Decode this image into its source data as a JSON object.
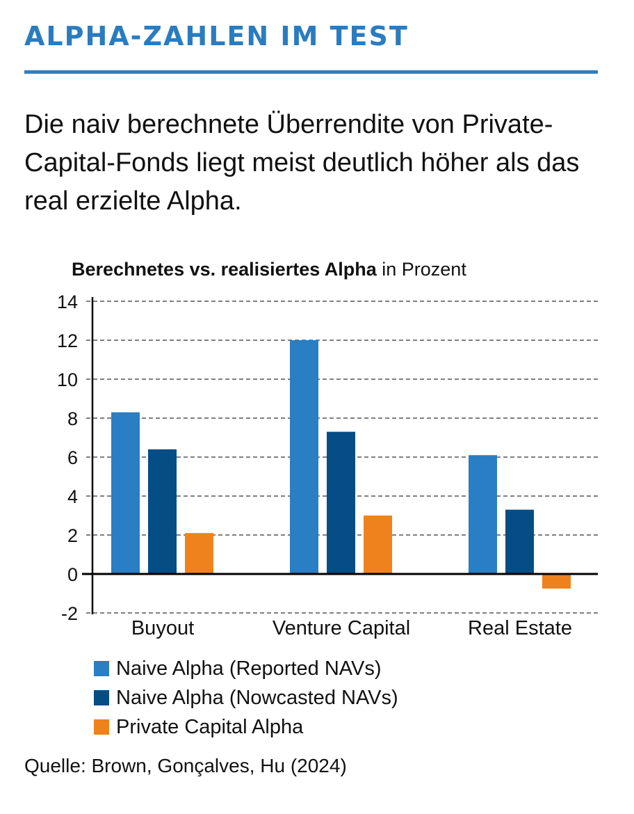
{
  "header": {
    "title": "ALPHA-ZAHLEN IM TEST",
    "subtitle": "Die naiv berechnete Überrendite von Private-Capital-Fonds liegt meist deutlich höher als das real erzielte Alpha."
  },
  "colors": {
    "accent": "#2a7cc0",
    "naive_reported": "#2a7ec3",
    "naive_nowcasted": "#054d85",
    "private_capital": "#ef821c"
  },
  "chart_data": {
    "type": "bar",
    "title_bold": "Berechnetes vs. realisiertes Alpha",
    "title_regular": "in Prozent",
    "xlabel": "",
    "ylabel": "",
    "categories": [
      "Buyout",
      "Venture Capital",
      "Real Estate"
    ],
    "series": [
      {
        "name": "Naive Alpha (Reported NAVs)",
        "color": "#2a7ec3",
        "values": [
          8.3,
          12.0,
          6.1
        ]
      },
      {
        "name": "Naive Alpha (Nowcasted NAVs)",
        "color": "#054d85",
        "values": [
          6.4,
          7.3,
          3.3
        ]
      },
      {
        "name": "Private Capital Alpha",
        "color": "#ef821c",
        "values": [
          2.1,
          3.0,
          -0.75
        ]
      }
    ],
    "ylim": [
      -2,
      14
    ],
    "yticks": [
      -2,
      0,
      2,
      4,
      6,
      8,
      10,
      12,
      14
    ],
    "grid": true,
    "legend_position": "bottom-left"
  },
  "footer": {
    "source": "Quelle: Brown, Gonçalves, Hu (2024)"
  }
}
